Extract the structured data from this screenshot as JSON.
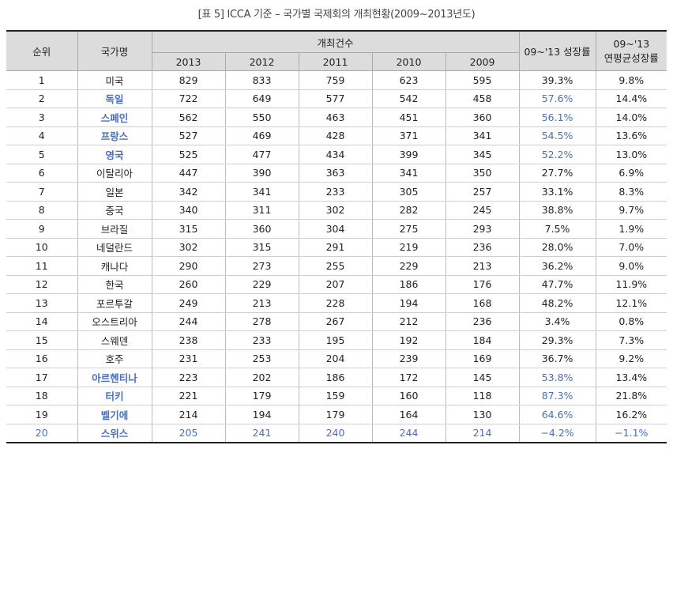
{
  "caption": "[표 5] ICCA 기준 – 국가별 국제회의 개최현황(2009~2013년도)",
  "headers": {
    "rank": "순위",
    "country": "국가명",
    "count_group": "개최건수",
    "years": [
      "2013",
      "2012",
      "2011",
      "2010",
      "2009"
    ],
    "growth": "09~'13 성장률",
    "cagr_line1": "09~'13",
    "cagr_line2": "연평균성장률"
  },
  "accent_color": "#4a6fb8",
  "rows": [
    {
      "rank": "1",
      "country": "미국",
      "v2013": "829",
      "v2012": "833",
      "v2011": "759",
      "v2010": "623",
      "v2009": "595",
      "growth": "39.3%",
      "cagr": "9.8%",
      "hl_country": false,
      "hl_growth": false,
      "hl_row": false
    },
    {
      "rank": "2",
      "country": "독일",
      "v2013": "722",
      "v2012": "649",
      "v2011": "577",
      "v2010": "542",
      "v2009": "458",
      "growth": "57.6%",
      "cagr": "14.4%",
      "hl_country": true,
      "hl_growth": true,
      "hl_row": false
    },
    {
      "rank": "3",
      "country": "스페인",
      "v2013": "562",
      "v2012": "550",
      "v2011": "463",
      "v2010": "451",
      "v2009": "360",
      "growth": "56.1%",
      "cagr": "14.0%",
      "hl_country": true,
      "hl_growth": true,
      "hl_row": false
    },
    {
      "rank": "4",
      "country": "프랑스",
      "v2013": "527",
      "v2012": "469",
      "v2011": "428",
      "v2010": "371",
      "v2009": "341",
      "growth": "54.5%",
      "cagr": "13.6%",
      "hl_country": true,
      "hl_growth": true,
      "hl_row": false
    },
    {
      "rank": "5",
      "country": "영국",
      "v2013": "525",
      "v2012": "477",
      "v2011": "434",
      "v2010": "399",
      "v2009": "345",
      "growth": "52.2%",
      "cagr": "13.0%",
      "hl_country": true,
      "hl_growth": true,
      "hl_row": false
    },
    {
      "rank": "6",
      "country": "이탈리아",
      "v2013": "447",
      "v2012": "390",
      "v2011": "363",
      "v2010": "341",
      "v2009": "350",
      "growth": "27.7%",
      "cagr": "6.9%",
      "hl_country": false,
      "hl_growth": false,
      "hl_row": false
    },
    {
      "rank": "7",
      "country": "일본",
      "v2013": "342",
      "v2012": "341",
      "v2011": "233",
      "v2010": "305",
      "v2009": "257",
      "growth": "33.1%",
      "cagr": "8.3%",
      "hl_country": false,
      "hl_growth": false,
      "hl_row": false
    },
    {
      "rank": "8",
      "country": "중국",
      "v2013": "340",
      "v2012": "311",
      "v2011": "302",
      "v2010": "282",
      "v2009": "245",
      "growth": "38.8%",
      "cagr": "9.7%",
      "hl_country": false,
      "hl_growth": false,
      "hl_row": false
    },
    {
      "rank": "9",
      "country": "브라질",
      "v2013": "315",
      "v2012": "360",
      "v2011": "304",
      "v2010": "275",
      "v2009": "293",
      "growth": "7.5%",
      "cagr": "1.9%",
      "hl_country": false,
      "hl_growth": false,
      "hl_row": false
    },
    {
      "rank": "10",
      "country": "네덜란드",
      "v2013": "302",
      "v2012": "315",
      "v2011": "291",
      "v2010": "219",
      "v2009": "236",
      "growth": "28.0%",
      "cagr": "7.0%",
      "hl_country": false,
      "hl_growth": false,
      "hl_row": false
    },
    {
      "rank": "11",
      "country": "캐나다",
      "v2013": "290",
      "v2012": "273",
      "v2011": "255",
      "v2010": "229",
      "v2009": "213",
      "growth": "36.2%",
      "cagr": "9.0%",
      "hl_country": false,
      "hl_growth": false,
      "hl_row": false
    },
    {
      "rank": "12",
      "country": "한국",
      "v2013": "260",
      "v2012": "229",
      "v2011": "207",
      "v2010": "186",
      "v2009": "176",
      "growth": "47.7%",
      "cagr": "11.9%",
      "hl_country": false,
      "hl_growth": false,
      "hl_row": false
    },
    {
      "rank": "13",
      "country": "포르투갈",
      "v2013": "249",
      "v2012": "213",
      "v2011": "228",
      "v2010": "194",
      "v2009": "168",
      "growth": "48.2%",
      "cagr": "12.1%",
      "hl_country": false,
      "hl_growth": false,
      "hl_row": false
    },
    {
      "rank": "14",
      "country": "오스트리아",
      "v2013": "244",
      "v2012": "278",
      "v2011": "267",
      "v2010": "212",
      "v2009": "236",
      "growth": "3.4%",
      "cagr": "0.8%",
      "hl_country": false,
      "hl_growth": false,
      "hl_row": false
    },
    {
      "rank": "15",
      "country": "스웨덴",
      "v2013": "238",
      "v2012": "233",
      "v2011": "195",
      "v2010": "192",
      "v2009": "184",
      "growth": "29.3%",
      "cagr": "7.3%",
      "hl_country": false,
      "hl_growth": false,
      "hl_row": false
    },
    {
      "rank": "16",
      "country": "호주",
      "v2013": "231",
      "v2012": "253",
      "v2011": "204",
      "v2010": "239",
      "v2009": "169",
      "growth": "36.7%",
      "cagr": "9.2%",
      "hl_country": false,
      "hl_growth": false,
      "hl_row": false
    },
    {
      "rank": "17",
      "country": "아르헨티나",
      "v2013": "223",
      "v2012": "202",
      "v2011": "186",
      "v2010": "172",
      "v2009": "145",
      "growth": "53.8%",
      "cagr": "13.4%",
      "hl_country": true,
      "hl_growth": true,
      "hl_row": false
    },
    {
      "rank": "18",
      "country": "터키",
      "v2013": "221",
      "v2012": "179",
      "v2011": "159",
      "v2010": "160",
      "v2009": "118",
      "growth": "87.3%",
      "cagr": "21.8%",
      "hl_country": true,
      "hl_growth": true,
      "hl_row": false
    },
    {
      "rank": "19",
      "country": "벨기에",
      "v2013": "214",
      "v2012": "194",
      "v2011": "179",
      "v2010": "164",
      "v2009": "130",
      "growth": "64.6%",
      "cagr": "16.2%",
      "hl_country": true,
      "hl_growth": true,
      "hl_row": false
    },
    {
      "rank": "20",
      "country": "스위스",
      "v2013": "205",
      "v2012": "241",
      "v2011": "240",
      "v2010": "244",
      "v2009": "214",
      "growth": "−4.2%",
      "cagr": "−1.1%",
      "hl_country": true,
      "hl_growth": true,
      "hl_row": true
    }
  ]
}
